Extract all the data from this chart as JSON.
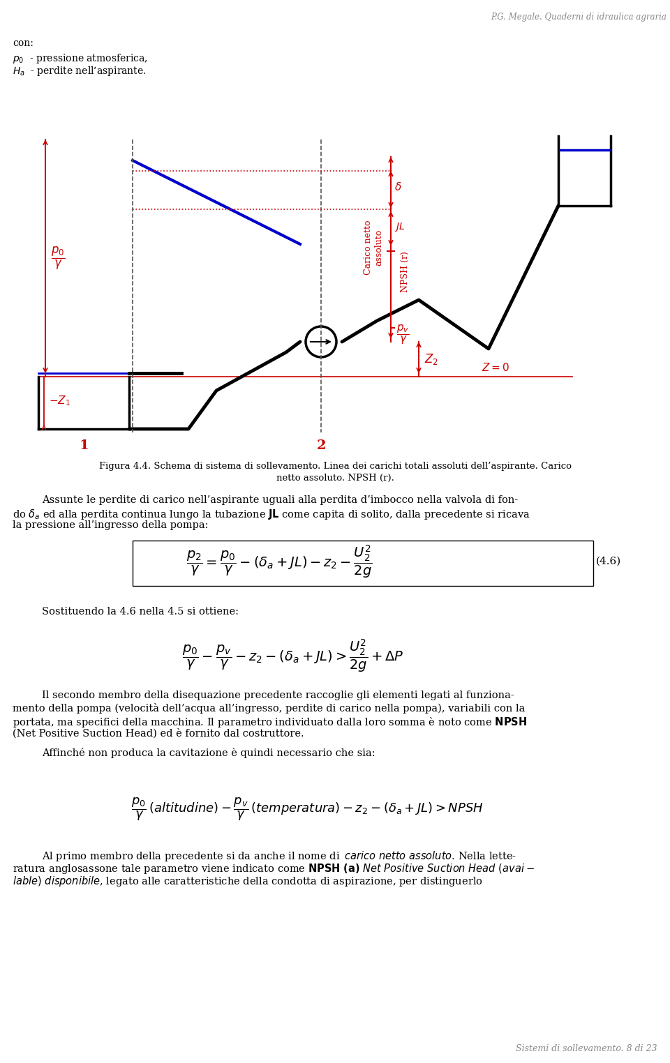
{
  "title_italic": "P.G. Megale. Quaderni di idraulica agraria",
  "header_text": "con:\n$p_0$  - pressione atmosferica,\n$H_a$  - perdite nell’aspirante.",
  "fig_caption": "Figura 4.4. Schema di sistema di sollevamento. Linea dei carichi totali assoluti dell’aspirante. Carico\nnetto assoluto. NPSH (r).",
  "body_text1": "Assunte le perdite di carico nell’aspirante uguali alla perdita d’imbocco nella valvola di fon-\ndo δₐ ed alla perdita continua lungo la tubazione JL come capita di solito, dalla precedente si ricava\nla pressione all’ingresso della pompa:",
  "eq1": "$\\dfrac{p_2}{\\gamma} = \\dfrac{p_0}{\\gamma} - (\\delta_a + JL) - z_2 - \\dfrac{U_2^2}{2g}$",
  "eq1_number": "(4.6)",
  "body_text2": "Sostituendo la 4.6 nella 4.5 si ottiene:",
  "eq2": "$\\dfrac{p_0}{\\gamma} - \\dfrac{p_v}{\\gamma} - z_2 - (\\delta_a + JL) > \\dfrac{U_2^2}{2g} + \\Delta P$",
  "body_text3": "Il secondo membro della disequazione precedente raccoglie gli elementi legati al funziona-\nmento della pompa (velocità dell’acqua all’ingresso, perdite di carico nella pompa), variabili con la\nportata, ma specifici della macchina. Il parametro individuato dalla loro somma è noto come NPSH\n(Net Positive Suction Head) ed è fornito dal costruttore.",
  "body_text4": "Affinché non produca la cavitazione è quindi necessario che sia:",
  "eq3": "$\\dfrac{p_0}{\\gamma}\\,(altitudine) - \\dfrac{p_v}{\\gamma}\\,(temperatura) - z_2 - (\\delta_a + JL) > NPSH$",
  "body_text5": "Al primo membro della precedente si da anche il nome di carico netto assoluto. Nella lette-\nratura anglosassone tale parametro viene indicato come NPSH (a) Net Positive Suction Head (avai-\nlable) disponibile, legato alle caratteristiche della condotta di aspirazione, per distinguerlo",
  "footer": "Sistemi di sollevamento. 8 di 23",
  "red": "#cc0000",
  "blue_line": "#0000cc",
  "black": "#000000",
  "bg": "#ffffff"
}
